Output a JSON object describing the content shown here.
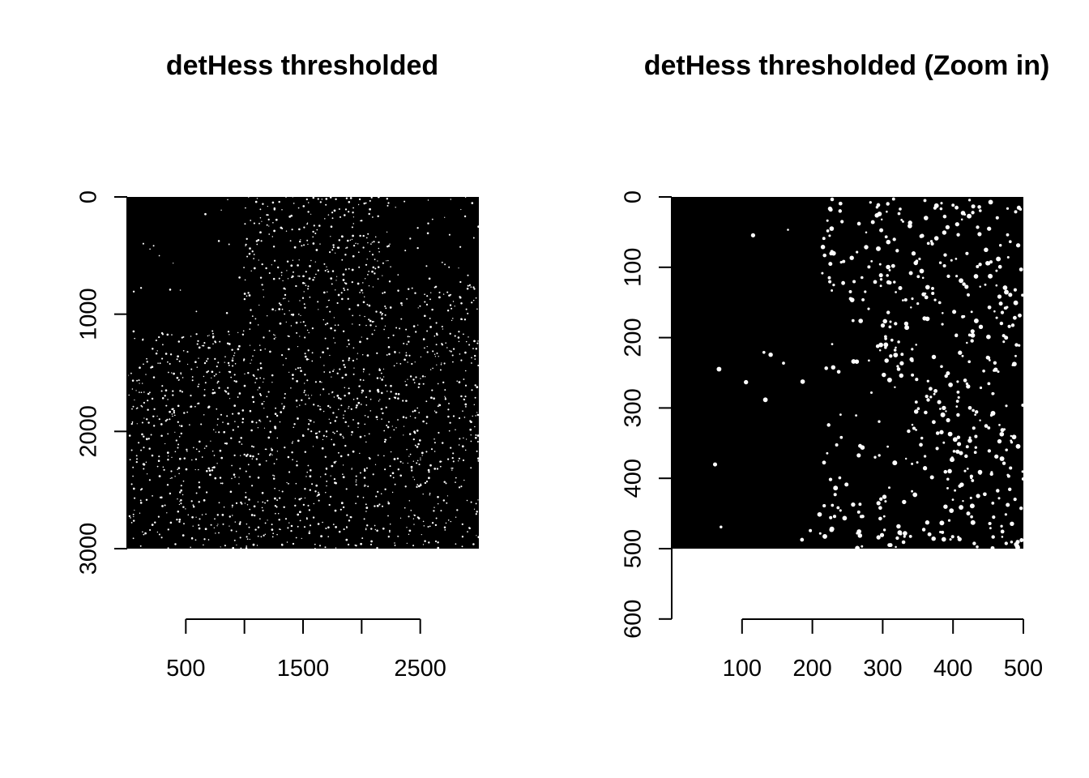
{
  "figure": {
    "background": "#ffffff",
    "image_fill": "#000000",
    "spot_color": "#ffffff"
  },
  "chart_data": [
    {
      "type": "heatmap",
      "title": "detHess thresholded",
      "xlabel": "",
      "ylabel": "",
      "image_extent": {
        "x": [
          0,
          3000
        ],
        "y": [
          0,
          3000
        ]
      },
      "xaxis": {
        "ticks": [
          500,
          1000,
          1500,
          2000,
          2500
        ],
        "labels": [
          "500",
          "",
          "1500",
          "",
          "2500"
        ]
      },
      "yaxis": {
        "ticks": [
          0,
          1000,
          2000,
          3000
        ],
        "labels": [
          "0",
          "1000",
          "2000",
          "3000"
        ],
        "reversed": true
      },
      "legend": "none",
      "grid": false
    },
    {
      "type": "heatmap",
      "title": "detHess thresholded (Zoom in)",
      "xlabel": "",
      "ylabel": "",
      "image_extent": {
        "x": [
          0,
          500
        ],
        "y": [
          0,
          500
        ]
      },
      "xaxis": {
        "ticks": [
          100,
          200,
          300,
          400,
          500
        ],
        "labels": [
          "100",
          "200",
          "300",
          "400",
          "500"
        ]
      },
      "yaxis": {
        "ticks": [
          0,
          100,
          200,
          300,
          400,
          500,
          600
        ],
        "labels": [
          "0",
          "100",
          "200",
          "300",
          "400",
          "500",
          "600"
        ],
        "reversed": true
      },
      "legend": "none",
      "grid": false
    }
  ]
}
